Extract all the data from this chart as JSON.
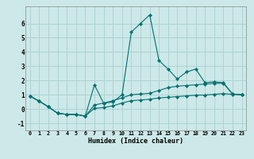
{
  "xlabel": "Humidex (Indice chaleur)",
  "background_color": "#cde8e8",
  "grid_color": "#a8d0d0",
  "line_color": "#007070",
  "xlim": [
    -0.5,
    23.5
  ],
  "ylim": [
    -1.5,
    7.2
  ],
  "x_ticks": [
    0,
    1,
    2,
    3,
    4,
    5,
    6,
    7,
    8,
    9,
    10,
    11,
    12,
    13,
    14,
    15,
    16,
    17,
    18,
    19,
    20,
    21,
    22,
    23
  ],
  "yticks": [
    -1,
    0,
    1,
    2,
    3,
    4,
    5,
    6
  ],
  "line1_y": [
    0.9,
    0.55,
    0.15,
    -0.3,
    -0.38,
    -0.38,
    -0.5,
    1.7,
    0.4,
    0.5,
    1.0,
    5.4,
    6.0,
    6.6,
    3.4,
    2.8,
    2.1,
    2.6,
    2.8,
    1.85,
    1.9,
    1.85,
    1.05,
    1.0
  ],
  "line2_y": [
    0.9,
    0.55,
    0.15,
    -0.3,
    -0.38,
    -0.38,
    -0.5,
    0.28,
    0.42,
    0.58,
    0.78,
    1.0,
    1.05,
    1.1,
    1.3,
    1.5,
    1.6,
    1.65,
    1.7,
    1.75,
    1.8,
    1.8,
    1.05,
    1.0
  ],
  "line3_y": [
    0.9,
    0.55,
    0.15,
    -0.3,
    -0.38,
    -0.38,
    -0.5,
    0.05,
    0.1,
    0.22,
    0.42,
    0.58,
    0.63,
    0.68,
    0.78,
    0.82,
    0.87,
    0.92,
    0.97,
    0.98,
    1.03,
    1.08,
    1.03,
    1.0
  ]
}
